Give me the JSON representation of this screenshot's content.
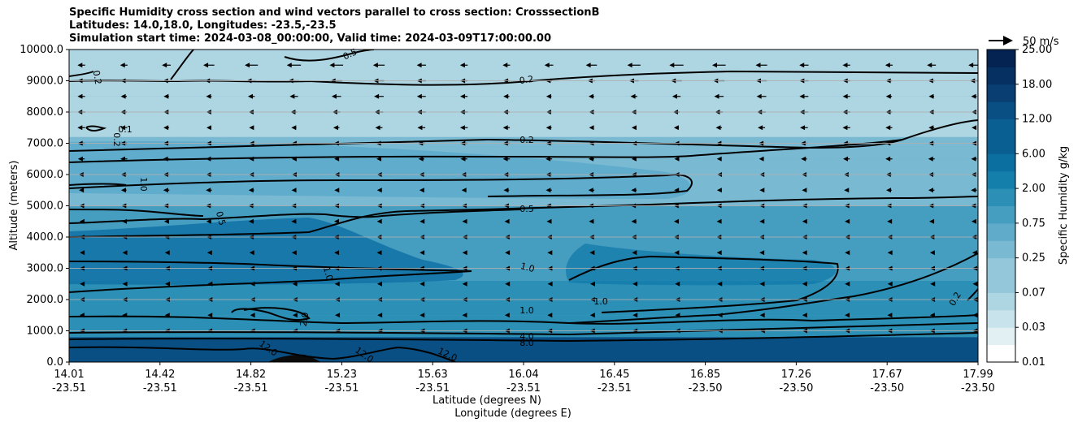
{
  "chart_data": {
    "type": "heatmap",
    "title_lines": [
      "Specific Humidity cross section and wind vectors parallel to cross section: CrosssectionB",
      "Latitudes: 14.0,18.0, Longitudes: -23.5,-23.5",
      "Simulation start time: 2024-03-08_00:00:00, Valid time: 2024-03-09T17:00:00.00"
    ],
    "ylabel": "Altitude (meters)",
    "xlabel_lines": [
      "Latitude (degrees N)",
      "Longitude (degrees E)"
    ],
    "ylim": [
      0,
      10000
    ],
    "yticks": [
      "0.0",
      "1000.0",
      "2000.0",
      "3000.0",
      "4000.0",
      "5000.0",
      "6000.0",
      "7000.0",
      "8000.0",
      "9000.0",
      "10000.0"
    ],
    "xticks": [
      {
        "lat": "14.01",
        "lon": "-23.51"
      },
      {
        "lat": "14.42",
        "lon": "-23.51"
      },
      {
        "lat": "14.82",
        "lon": "-23.51"
      },
      {
        "lat": "15.23",
        "lon": "-23.51"
      },
      {
        "lat": "15.63",
        "lon": "-23.51"
      },
      {
        "lat": "16.04",
        "lon": "-23.51"
      },
      {
        "lat": "16.45",
        "lon": "-23.51"
      },
      {
        "lat": "16.85",
        "lon": "-23.50"
      },
      {
        "lat": "17.26",
        "lon": "-23.50"
      },
      {
        "lat": "17.67",
        "lon": "-23.50"
      },
      {
        "lat": "17.99",
        "lon": "-23.50"
      }
    ],
    "colorbar": {
      "label": "Specific Humidity g/kg",
      "ticks": [
        "0.01",
        "0.03",
        "0.07",
        "0.25",
        "0.75",
        "2.00",
        "6.00",
        "12.00",
        "18.00",
        "25.00"
      ]
    },
    "quiver_key": "50 m/s",
    "contour_labels": [
      "0.5",
      "0.2",
      "0.2",
      "0.1",
      "0.2",
      "1.0",
      "0.5",
      "0.5",
      "1.0",
      "1.0",
      "1.0",
      "1.0",
      "2.0",
      "4.0",
      "8.0",
      "12.0",
      "12.0",
      "12.0",
      "0.2",
      "0.2"
    ],
    "humidity_layers": [
      {
        "bottom": 0,
        "top": 800,
        "value": 12.0
      },
      {
        "bottom": 800,
        "top": 1500,
        "value": 4.0
      },
      {
        "bottom": 1500,
        "top": 2600,
        "value": 2.0
      },
      {
        "bottom": 2600,
        "top": 4000,
        "value": 1.0
      },
      {
        "bottom": 4000,
        "top": 5000,
        "value": 0.75
      },
      {
        "bottom": 5000,
        "top": 6500,
        "value": 0.5
      },
      {
        "bottom": 6500,
        "top": 7200,
        "value": 0.25
      },
      {
        "bottom": 7200,
        "top": 8500,
        "value": 0.15
      },
      {
        "bottom": 8500,
        "top": 10000,
        "value": 0.2
      }
    ]
  }
}
